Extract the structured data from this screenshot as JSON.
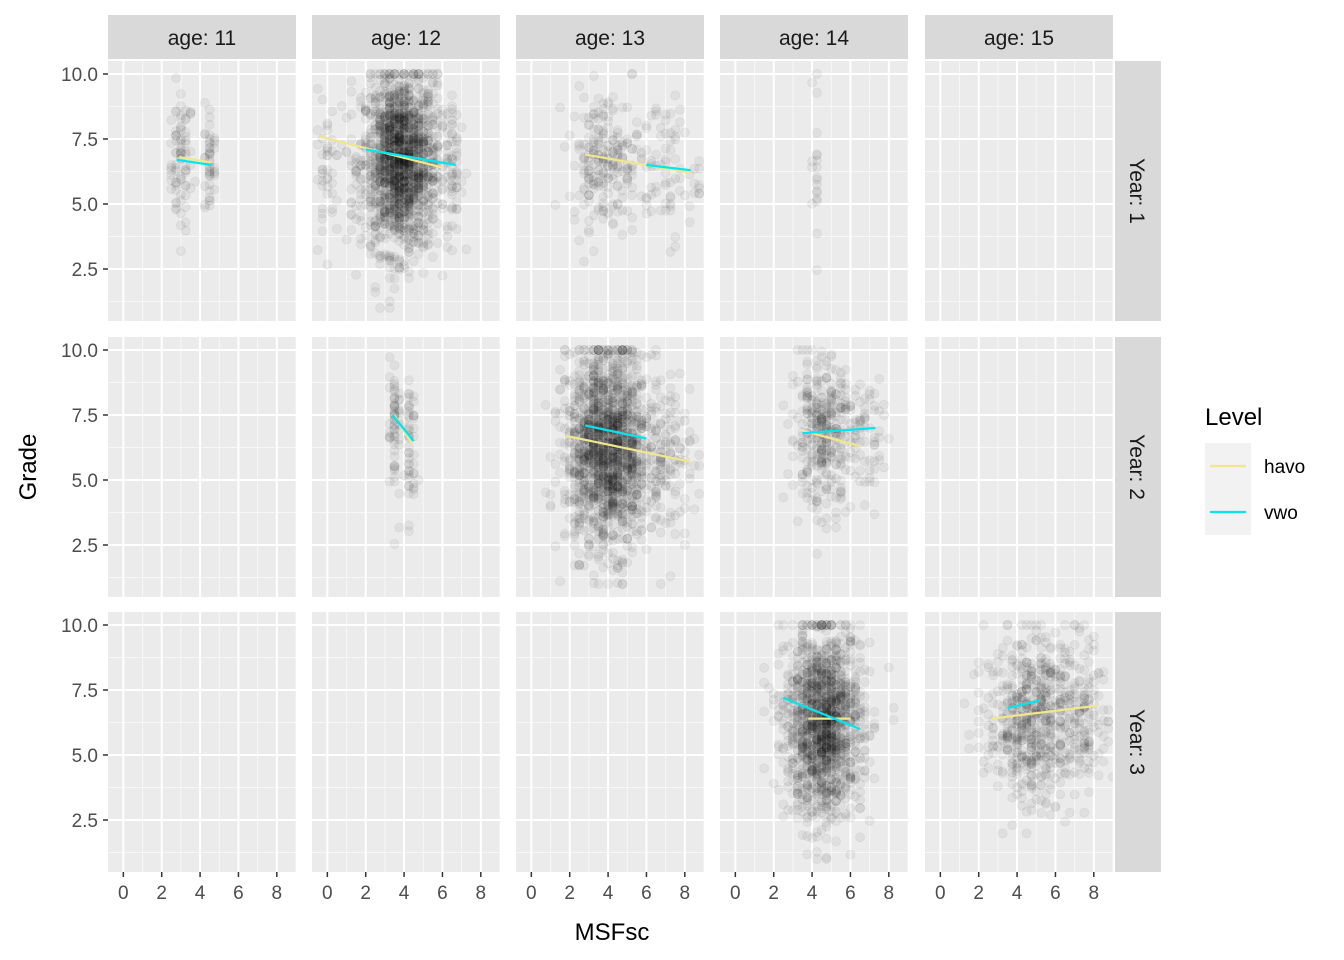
{
  "chart_data": {
    "type": "scatter",
    "faceting": "grid",
    "xlabel": "MSFsc",
    "ylabel": "Grade",
    "xlim": [
      -0.8,
      9.0
    ],
    "ylim": [
      0.5,
      10.5
    ],
    "x_ticks": [
      0,
      2,
      4,
      6,
      8
    ],
    "y_ticks": [
      2.5,
      5.0,
      7.5,
      10.0
    ],
    "col_labels": [
      "age: 11",
      "age: 12",
      "age: 13",
      "age: 14",
      "age: 15"
    ],
    "row_labels": [
      "Year: 1",
      "Year: 2",
      "Year: 3"
    ],
    "legend": {
      "title": "Level",
      "position": "right",
      "entries": [
        {
          "name": "havo",
          "color": "#F0E68C"
        },
        {
          "name": "vwo",
          "color": "#00E5EE"
        }
      ]
    },
    "point_color": "#000000",
    "grid": true,
    "panels": [
      {
        "row": 0,
        "col": 0,
        "point_clouds": [
          {
            "cx": 3.0,
            "sx": 0.3,
            "cy": 6.6,
            "sy": 1.3,
            "n": 80
          },
          {
            "cx": 4.5,
            "sx": 0.12,
            "cy": 6.5,
            "sy": 1.1,
            "n": 45
          }
        ],
        "lines": [
          {
            "series": "havo",
            "x": [
              2.9,
              4.6
            ],
            "y": [
              6.8,
              6.6
            ]
          },
          {
            "series": "vwo",
            "x": [
              2.8,
              4.6
            ],
            "y": [
              6.7,
              6.5
            ]
          }
        ]
      },
      {
        "row": 0,
        "col": 1,
        "point_clouds": [
          {
            "cx": 3.8,
            "sx": 1.0,
            "cy": 6.6,
            "sy": 1.7,
            "n": 1600
          },
          {
            "cx": 0.0,
            "sx": 0.3,
            "cy": 6.5,
            "sy": 1.5,
            "n": 40
          },
          {
            "cx": 6.6,
            "sx": 0.25,
            "cy": 6.5,
            "sy": 1.5,
            "n": 50
          }
        ],
        "lines": [
          {
            "series": "havo",
            "x": [
              -0.4,
              6.0
            ],
            "y": [
              7.6,
              6.4
            ]
          },
          {
            "series": "vwo",
            "x": [
              2.0,
              6.7
            ],
            "y": [
              7.1,
              6.5
            ]
          }
        ]
      },
      {
        "row": 0,
        "col": 2,
        "point_clouds": [
          {
            "cx": 3.8,
            "sx": 0.9,
            "cy": 6.7,
            "sy": 1.3,
            "n": 220
          },
          {
            "cx": 7.0,
            "sx": 0.9,
            "cy": 6.3,
            "sy": 1.4,
            "n": 80
          }
        ],
        "lines": [
          {
            "series": "havo",
            "x": [
              2.8,
              8.3
            ],
            "y": [
              6.9,
              6.2
            ]
          },
          {
            "series": "vwo",
            "x": [
              6.0,
              8.3
            ],
            "y": [
              6.5,
              6.3
            ]
          }
        ]
      },
      {
        "row": 0,
        "col": 3,
        "point_clouds": [
          {
            "cx": 4.2,
            "sx": 0.05,
            "cy": 6.5,
            "sy": 1.6,
            "n": 20
          }
        ],
        "lines": []
      },
      {
        "row": 0,
        "col": 4,
        "point_clouds": [],
        "lines": []
      },
      {
        "row": 1,
        "col": 0,
        "point_clouds": [],
        "lines": []
      },
      {
        "row": 1,
        "col": 1,
        "point_clouds": [
          {
            "cx": 3.5,
            "sx": 0.12,
            "cy": 7.0,
            "sy": 1.5,
            "n": 60
          },
          {
            "cx": 4.3,
            "sx": 0.12,
            "cy": 6.5,
            "sy": 1.5,
            "n": 50
          }
        ],
        "lines": [
          {
            "series": "havo",
            "x": [
              3.5,
              4.4
            ],
            "y": [
              7.5,
              6.4
            ]
          },
          {
            "series": "vwo",
            "x": [
              3.4,
              4.5
            ],
            "y": [
              7.5,
              6.5
            ]
          }
        ]
      },
      {
        "row": 1,
        "col": 2,
        "point_clouds": [
          {
            "cx": 4.0,
            "sx": 1.1,
            "cy": 6.2,
            "sy": 1.9,
            "n": 1600
          },
          {
            "cx": 7.2,
            "sx": 0.7,
            "cy": 6.0,
            "sy": 1.6,
            "n": 120
          }
        ],
        "lines": [
          {
            "series": "havo",
            "x": [
              1.8,
              8.3
            ],
            "y": [
              6.7,
              5.7
            ]
          },
          {
            "series": "vwo",
            "x": [
              2.8,
              6.0
            ],
            "y": [
              7.1,
              6.6
            ]
          }
        ]
      },
      {
        "row": 1,
        "col": 3,
        "point_clouds": [
          {
            "cx": 4.5,
            "sx": 0.8,
            "cy": 6.8,
            "sy": 1.4,
            "n": 350
          },
          {
            "cx": 7.0,
            "sx": 0.6,
            "cy": 6.5,
            "sy": 1.4,
            "n": 60
          }
        ],
        "lines": [
          {
            "series": "havo",
            "x": [
              3.5,
              6.5
            ],
            "y": [
              6.9,
              6.3
            ]
          },
          {
            "series": "vwo",
            "x": [
              3.5,
              7.3
            ],
            "y": [
              6.8,
              7.0
            ]
          }
        ]
      },
      {
        "row": 1,
        "col": 4,
        "point_clouds": [],
        "lines": []
      },
      {
        "row": 2,
        "col": 0,
        "point_clouds": [],
        "lines": []
      },
      {
        "row": 2,
        "col": 1,
        "point_clouds": [],
        "lines": []
      },
      {
        "row": 2,
        "col": 2,
        "point_clouds": [],
        "lines": []
      },
      {
        "row": 2,
        "col": 3,
        "point_clouds": [
          {
            "cx": 4.6,
            "sx": 1.0,
            "cy": 6.2,
            "sy": 1.8,
            "n": 1400
          }
        ],
        "lines": [
          {
            "series": "havo",
            "x": [
              3.8,
              6.0
            ],
            "y": [
              6.4,
              6.4
            ]
          },
          {
            "series": "vwo",
            "x": [
              2.5,
              6.5
            ],
            "y": [
              7.2,
              6.0
            ]
          }
        ]
      },
      {
        "row": 2,
        "col": 4,
        "point_clouds": [
          {
            "cx": 4.8,
            "sx": 1.2,
            "cy": 6.4,
            "sy": 1.6,
            "n": 600
          },
          {
            "cx": 7.6,
            "sx": 0.6,
            "cy": 6.6,
            "sy": 1.4,
            "n": 120
          }
        ],
        "lines": [
          {
            "series": "havo",
            "x": [
              2.7,
              8.2
            ],
            "y": [
              6.4,
              6.9
            ]
          },
          {
            "series": "vwo",
            "x": [
              3.5,
              5.2
            ],
            "y": [
              6.8,
              7.1
            ]
          }
        ]
      }
    ]
  }
}
